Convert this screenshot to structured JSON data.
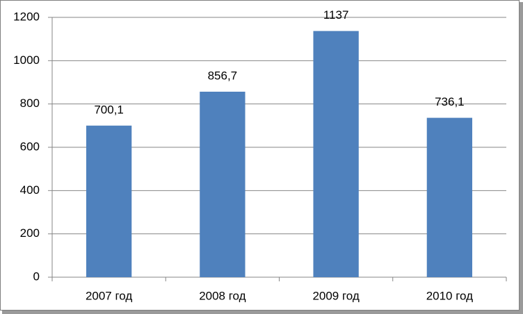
{
  "chart_data": {
    "type": "bar",
    "categories": [
      "2007 год",
      "2008 год",
      "2009 год",
      "2010 год"
    ],
    "values": [
      700.1,
      856.7,
      1137,
      736.1
    ],
    "value_labels": [
      "700,1",
      "856,7",
      "1137",
      "736,1"
    ],
    "color": "#4f81bd",
    "ylim": [
      0,
      1200
    ],
    "yticks": [
      0,
      200,
      400,
      600,
      800,
      1000,
      1200
    ],
    "grid": true
  }
}
